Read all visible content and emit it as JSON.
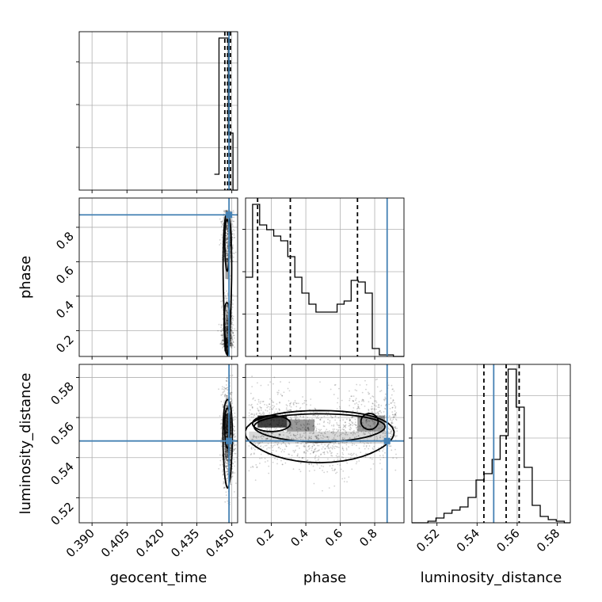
{
  "chart_data": {
    "type": "corner",
    "parameters": [
      "geocent_time",
      "phase",
      "luminosity_distance"
    ],
    "ranges": {
      "geocent_time": [
        0.3845,
        0.4525
      ],
      "phase": [
        0.05,
        0.97
      ],
      "luminosity_distance": [
        0.5075,
        0.5865
      ]
    },
    "ticks": {
      "geocent_time": [
        0.39,
        0.405,
        0.42,
        0.435,
        0.45
      ],
      "phase": [
        0.2,
        0.4,
        0.6,
        0.8
      ],
      "luminosity_distance": [
        0.52,
        0.54,
        0.56,
        0.58
      ]
    },
    "tick_labels": {
      "geocent_time": [
        "0.390",
        "0.405",
        "0.420",
        "0.435",
        "0.450"
      ],
      "phase": [
        "0.2",
        "0.4",
        "0.6",
        "0.8"
      ],
      "luminosity_distance": [
        "0.52",
        "0.54",
        "0.56",
        "0.58"
      ]
    },
    "truths": {
      "geocent_time": 0.4488,
      "phase": 0.8722,
      "luminosity_distance": 0.5483
    },
    "quantiles": {
      "geocent_time": [
        0.447,
        0.4482,
        0.4494
      ],
      "phase": [
        0.12,
        0.31,
        0.7
      ],
      "luminosity_distance": [
        0.5434,
        0.5545,
        0.561
      ]
    },
    "histograms": {
      "geocent_time": {
        "edges": [
          0.4425,
          0.4445,
          0.4465,
          0.4485,
          0.4505,
          0.4525
        ],
        "counts": [
          0.1,
          0.96,
          0.96,
          0.36,
          0.0
        ]
      },
      "phase": {
        "edges": [
          0.05,
          0.0909,
          0.1318,
          0.1727,
          0.2136,
          0.2544,
          0.2953,
          0.3362,
          0.3771,
          0.418,
          0.4589,
          0.4998,
          0.5407,
          0.5816,
          0.6224,
          0.6633,
          0.7042,
          0.7451,
          0.786,
          0.8269,
          0.8678,
          0.9087,
          0.9496,
          0.97
        ],
        "counts": [
          0.5,
          0.96,
          0.83,
          0.8,
          0.76,
          0.73,
          0.63,
          0.5,
          0.4,
          0.33,
          0.28,
          0.28,
          0.28,
          0.33,
          0.35,
          0.48,
          0.47,
          0.4,
          0.05,
          0.01,
          0.01,
          0.0,
          0.0
        ]
      },
      "luminosity_distance": {
        "edges": [
          0.5075,
          0.5115,
          0.5155,
          0.5195,
          0.5235,
          0.5275,
          0.5315,
          0.5355,
          0.5395,
          0.5435,
          0.5475,
          0.5515,
          0.5555,
          0.5595,
          0.5635,
          0.5675,
          0.5715,
          0.5755,
          0.5795,
          0.5835,
          0.5865
        ],
        "counts": [
          0.0,
          0.0,
          0.01,
          0.03,
          0.06,
          0.08,
          0.1,
          0.16,
          0.27,
          0.31,
          0.4,
          0.55,
          0.97,
          0.73,
          0.35,
          0.11,
          0.04,
          0.02,
          0.01,
          0.0
        ]
      }
    },
    "xlabels": [
      "geocent_time",
      "phase",
      "luminosity_distance"
    ],
    "ylabels": [
      "",
      "phase",
      "luminosity_distance"
    ],
    "grid": true
  }
}
